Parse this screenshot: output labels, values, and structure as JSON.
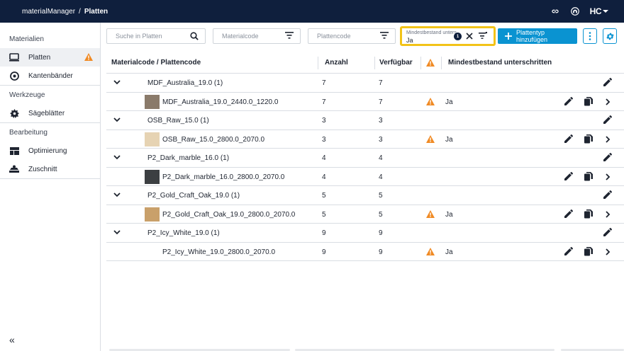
{
  "topbar": {
    "app_name": "materialManager",
    "separator": "/",
    "current": "Platten",
    "logo_text": "HC"
  },
  "sidebar": {
    "sections": [
      {
        "title": "Materialien",
        "items": [
          {
            "label": "Platten",
            "icon": "monitor-icon",
            "active": true,
            "warning": true
          },
          {
            "label": "Kantenbänder",
            "icon": "edgeband-roll-icon"
          }
        ]
      },
      {
        "title": "Werkzeuge",
        "items": [
          {
            "label": "Sägeblätter",
            "icon": "saw-blade-icon"
          }
        ]
      },
      {
        "title": "Bearbeitung",
        "items": [
          {
            "label": "Optimierung",
            "icon": "layout-icon"
          },
          {
            "label": "Zuschnitt",
            "icon": "cutting-icon"
          }
        ]
      }
    ],
    "collapse_label": "«"
  },
  "filters": {
    "search_placeholder": "Suche in Platten",
    "materialcode_placeholder": "Materialcode",
    "plattencode_placeholder": "Plattencode",
    "mindest_label": "Mindestbestand unters...",
    "mindest_value": "Ja",
    "mindest_count": "1",
    "add_button": "Plattentyp hinzufügen"
  },
  "table": {
    "headers": {
      "code": "Materialcode / Plattencode",
      "anzahl": "Anzahl",
      "verfuegbar": "Verfügbar",
      "mindest": "Mindestbestand unterschritten"
    },
    "groups": [
      {
        "name": "MDF_Australia_19.0 (1)",
        "anzahl": "7",
        "verfuegbar": "7",
        "child": {
          "name": "MDF_Australia_19.0_2440.0_1220.0",
          "anzahl": "7",
          "verfuegbar": "7",
          "mindest": "Ja",
          "thumb": "#8a7a6a"
        }
      },
      {
        "name": "OSB_Raw_15.0 (1)",
        "anzahl": "3",
        "verfuegbar": "3",
        "child": {
          "name": "OSB_Raw_15.0_2800.0_2070.0",
          "anzahl": "3",
          "verfuegbar": "3",
          "mindest": "Ja",
          "thumb": "#e6d3b3"
        }
      },
      {
        "name": "P2_Dark_marble_16.0 (1)",
        "anzahl": "4",
        "verfuegbar": "4",
        "child": {
          "name": "P2_Dark_marble_16.0_2800.0_2070.0",
          "anzahl": "4",
          "verfuegbar": "4",
          "mindest": "",
          "thumb": "#3c3f42"
        }
      },
      {
        "name": "P2_Gold_Craft_Oak_19.0 (1)",
        "anzahl": "5",
        "verfuegbar": "5",
        "child": {
          "name": "P2_Gold_Craft_Oak_19.0_2800.0_2070.0",
          "anzahl": "5",
          "verfuegbar": "5",
          "mindest": "Ja",
          "thumb": "#c9a06a"
        }
      },
      {
        "name": "P2_Icy_White_19.0 (1)",
        "anzahl": "9",
        "verfuegbar": "9",
        "child": {
          "name": "P2_Icy_White_19.0_2800.0_2070.0",
          "anzahl": "9",
          "verfuegbar": "9",
          "mindest": "Ja",
          "thumb": ""
        }
      }
    ]
  },
  "colors": {
    "topbar": "#0f1f3d",
    "accent": "#0a93d1",
    "warning": "#f08a24",
    "highlight": "#f2c318"
  }
}
